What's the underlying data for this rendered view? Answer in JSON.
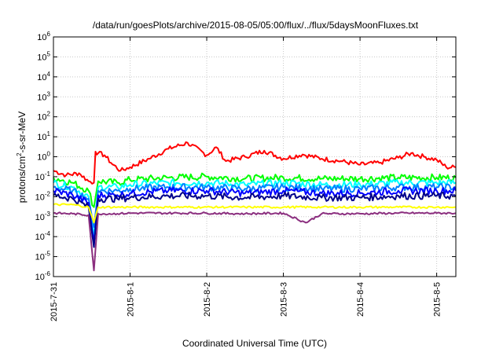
{
  "chart_data": {
    "type": "line",
    "title": "/data/run/goesPlots/archive/2015-08-05/05:00/flux/../flux/5daysMoonFluxes.txt",
    "xlabel": "Coordinated Universal Time (UTC)",
    "ylabel": {
      "pre": "protons/cm",
      "sup": "2",
      "post": "-s-sr-MeV"
    },
    "y_scale": "log",
    "ylim": [
      1e-06,
      1000000.0
    ],
    "y_ticks": [
      {
        "value": 1e-06,
        "base": "10",
        "exp": "-6"
      },
      {
        "value": 1e-05,
        "base": "10",
        "exp": "-5"
      },
      {
        "value": 0.0001,
        "base": "10",
        "exp": "-4"
      },
      {
        "value": 0.001,
        "base": "10",
        "exp": "-3"
      },
      {
        "value": 0.01,
        "base": "10",
        "exp": "-2"
      },
      {
        "value": 0.1,
        "base": "10",
        "exp": "-1"
      },
      {
        "value": 1,
        "base": "10",
        "exp": "0"
      },
      {
        "value": 10,
        "base": "10",
        "exp": "1"
      },
      {
        "value": 100,
        "base": "10",
        "exp": "2"
      },
      {
        "value": 1000,
        "base": "10",
        "exp": "3"
      },
      {
        "value": 10000,
        "base": "10",
        "exp": "4"
      },
      {
        "value": 100000,
        "base": "10",
        "exp": "5"
      },
      {
        "value": 1000000,
        "base": "10",
        "exp": "6"
      }
    ],
    "xlim": [
      "2015-07-31T00:00",
      "2015-08-05T06:00"
    ],
    "x_ticks": [
      {
        "value": "2015-07-31T00:00",
        "label": "2015-7-31"
      },
      {
        "value": "2015-08-01T00:00",
        "label": "2015-8-1"
      },
      {
        "value": "2015-08-02T00:00",
        "label": "2015-8-2"
      },
      {
        "value": "2015-08-03T00:00",
        "label": "2015-8-3"
      },
      {
        "value": "2015-08-04T00:00",
        "label": "2015-8-4"
      },
      {
        "value": "2015-08-05T00:00",
        "label": "2015-8-5"
      }
    ],
    "grid": true,
    "series": [
      {
        "color": "#ff0000",
        "x": [
          "2015-07-31T00:00",
          "2015-07-31T04:00",
          "2015-07-31T08:00",
          "2015-07-31T11:00",
          "2015-07-31T12:40",
          "2015-07-31T13:10",
          "2015-07-31T14:00",
          "2015-07-31T16:00",
          "2015-07-31T18:00",
          "2015-07-31T21:00",
          "2015-08-01T00:00",
          "2015-08-01T06:00",
          "2015-08-01T12:00",
          "2015-08-01T18:00",
          "2015-08-02T00:00",
          "2015-08-02T03:00",
          "2015-08-02T06:00",
          "2015-08-02T12:00",
          "2015-08-02T18:00",
          "2015-08-03T00:00",
          "2015-08-03T06:00",
          "2015-08-03T12:00",
          "2015-08-03T18:00",
          "2015-08-04T00:00",
          "2015-08-04T06:00",
          "2015-08-04T12:00",
          "2015-08-04T16:00",
          "2015-08-04T20:00",
          "2015-08-05T00:00",
          "2015-08-05T03:00",
          "2015-08-05T06:00"
        ],
        "values": [
          0.2,
          0.12,
          0.15,
          0.06,
          0.05,
          1.8,
          1.5,
          1.2,
          0.5,
          0.2,
          0.3,
          0.8,
          2.5,
          5.0,
          1.2,
          3.0,
          0.6,
          1.0,
          2.0,
          0.8,
          1.3,
          0.8,
          0.6,
          0.4,
          0.5,
          0.9,
          1.5,
          1.0,
          0.7,
          0.3,
          0.3
        ]
      },
      {
        "color": "#00ff00",
        "x": [
          "2015-07-31T00:00",
          "2015-07-31T06:00",
          "2015-07-31T11:00",
          "2015-07-31T12:40",
          "2015-07-31T14:00",
          "2015-07-31T20:00",
          "2015-08-01T00:00",
          "2015-08-01T12:00",
          "2015-08-02T00:00",
          "2015-08-02T12:00",
          "2015-08-03T00:00",
          "2015-08-03T12:00",
          "2015-08-04T00:00",
          "2015-08-04T12:00",
          "2015-08-05T00:00",
          "2015-08-05T06:00"
        ],
        "values": [
          0.09,
          0.05,
          0.02,
          0.003,
          0.06,
          0.05,
          0.07,
          0.09,
          0.1,
          0.08,
          0.09,
          0.08,
          0.08,
          0.09,
          0.09,
          0.09
        ]
      },
      {
        "color": "#00ffff",
        "x": [
          "2015-07-31T00:00",
          "2015-07-31T06:00",
          "2015-07-31T11:00",
          "2015-07-31T12:40",
          "2015-07-31T14:00",
          "2015-07-31T20:00",
          "2015-08-01T00:00",
          "2015-08-01T12:00",
          "2015-08-02T00:00",
          "2015-08-02T12:00",
          "2015-08-03T00:00",
          "2015-08-03T12:00",
          "2015-08-04T00:00",
          "2015-08-04T12:00",
          "2015-08-05T00:00",
          "2015-08-05T06:00"
        ],
        "values": [
          0.05,
          0.03,
          0.01,
          0.0001,
          0.03,
          0.03,
          0.04,
          0.05,
          0.05,
          0.04,
          0.05,
          0.04,
          0.04,
          0.05,
          0.05,
          0.05
        ]
      },
      {
        "color": "#0080ff",
        "x": [
          "2015-07-31T00:00",
          "2015-07-31T06:00",
          "2015-07-31T11:00",
          "2015-07-31T12:40",
          "2015-07-31T14:00",
          "2015-07-31T20:00",
          "2015-08-01T00:00",
          "2015-08-01T12:00",
          "2015-08-02T00:00",
          "2015-08-02T12:00",
          "2015-08-03T00:00",
          "2015-08-03T12:00",
          "2015-08-04T00:00",
          "2015-08-04T12:00",
          "2015-08-05T00:00",
          "2015-08-05T06:00"
        ],
        "values": [
          0.03,
          0.02,
          0.008,
          0.0003,
          0.02,
          0.02,
          0.025,
          0.03,
          0.03,
          0.025,
          0.03,
          0.025,
          0.025,
          0.03,
          0.03,
          0.03
        ]
      },
      {
        "color": "#0000ff",
        "x": [
          "2015-07-31T00:00",
          "2015-07-31T06:00",
          "2015-07-31T11:00",
          "2015-07-31T12:40",
          "2015-07-31T14:00",
          "2015-07-31T20:00",
          "2015-08-01T00:00",
          "2015-08-01T12:00",
          "2015-08-02T00:00",
          "2015-08-02T12:00",
          "2015-08-03T00:00",
          "2015-08-03T12:00",
          "2015-08-04T00:00",
          "2015-08-04T12:00",
          "2015-08-05T00:00",
          "2015-08-05T06:00"
        ],
        "values": [
          0.02,
          0.012,
          0.005,
          5e-05,
          0.012,
          0.012,
          0.015,
          0.02,
          0.02,
          0.015,
          0.02,
          0.015,
          0.015,
          0.02,
          0.02,
          0.02
        ]
      },
      {
        "color": "#00008b",
        "x": [
          "2015-07-31T00:00",
          "2015-07-31T06:00",
          "2015-07-31T11:00",
          "2015-07-31T12:40",
          "2015-07-31T14:00",
          "2015-07-31T20:00",
          "2015-08-01T00:00",
          "2015-08-01T12:00",
          "2015-08-02T00:00",
          "2015-08-02T12:00",
          "2015-08-03T00:00",
          "2015-08-03T12:00",
          "2015-08-04T00:00",
          "2015-08-04T12:00",
          "2015-08-05T00:00",
          "2015-08-05T06:00"
        ],
        "values": [
          0.012,
          0.008,
          0.003,
          3e-05,
          0.008,
          0.008,
          0.009,
          0.011,
          0.011,
          0.009,
          0.011,
          0.009,
          0.009,
          0.011,
          0.011,
          0.011
        ]
      },
      {
        "color": "#ffff00",
        "x": [
          "2015-07-31T00:00",
          "2015-07-31T06:00",
          "2015-07-31T11:00",
          "2015-07-31T12:40",
          "2015-07-31T14:00",
          "2015-07-31T20:00",
          "2015-08-01T00:00",
          "2015-08-01T12:00",
          "2015-08-02T00:00",
          "2015-08-02T12:00",
          "2015-08-03T00:00",
          "2015-08-03T12:00",
          "2015-08-04T00:00",
          "2015-08-04T12:00",
          "2015-08-05T00:00",
          "2015-08-05T06:00"
        ],
        "values": [
          0.004,
          0.004,
          0.003,
          0.0005,
          0.003,
          0.003,
          0.003,
          0.003,
          0.003,
          0.003,
          0.003,
          0.003,
          0.003,
          0.003,
          0.003,
          0.003
        ]
      },
      {
        "color": "#8b2f7f",
        "x": [
          "2015-07-31T00:00",
          "2015-07-31T06:00",
          "2015-07-31T11:00",
          "2015-07-31T12:40",
          "2015-07-31T14:00",
          "2015-07-31T20:00",
          "2015-08-01T00:00",
          "2015-08-01T12:00",
          "2015-08-02T00:00",
          "2015-08-02T12:00",
          "2015-08-03T00:00",
          "2015-08-03T07:00",
          "2015-08-03T12:00",
          "2015-08-04T00:00",
          "2015-08-04T12:00",
          "2015-08-05T00:00",
          "2015-08-05T06:00"
        ],
        "values": [
          0.0015,
          0.0014,
          0.0012,
          2e-06,
          0.0014,
          0.0014,
          0.0015,
          0.0015,
          0.0015,
          0.0014,
          0.0015,
          0.0005,
          0.0014,
          0.0014,
          0.0015,
          0.0015,
          0.0015
        ]
      }
    ]
  }
}
